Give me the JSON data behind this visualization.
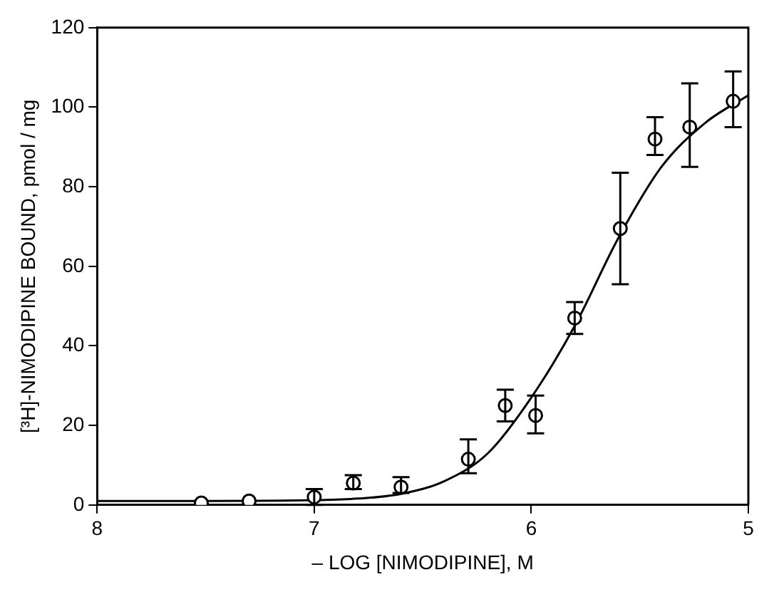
{
  "chart_data": {
    "type": "scatter",
    "xlabel": "– LOG [NIMODIPINE], M",
    "ylabel": "[³H]-NIMODIPINE BOUND, pmol / mg",
    "xlim": [
      8,
      5
    ],
    "xticks": [
      8,
      7,
      6,
      5
    ],
    "ylim": [
      0,
      120
    ],
    "yticks": [
      0,
      20,
      40,
      60,
      80,
      100,
      120
    ],
    "grid": false,
    "legend": false,
    "series": [
      {
        "type": "scatter",
        "color": "#000000",
        "marker": "circle",
        "x": [
          7.52,
          7.3,
          7.0,
          6.82,
          6.6,
          6.29,
          6.12,
          5.98,
          5.8,
          5.59,
          5.43,
          5.27,
          5.07
        ],
        "values": [
          0.5,
          1,
          2,
          5.5,
          4.5,
          11.5,
          25,
          22.5,
          47,
          69.5,
          92,
          95,
          101.5
        ],
        "errors": [
          null,
          null,
          [
            0,
            4
          ],
          [
            4,
            7.5
          ],
          [
            3,
            7
          ],
          [
            8,
            16.5
          ],
          [
            21,
            29
          ],
          [
            18,
            27.5
          ],
          [
            43,
            51
          ],
          [
            55.5,
            83.5
          ],
          [
            88,
            97.5
          ],
          [
            85,
            106
          ],
          [
            95,
            109
          ]
        ]
      },
      {
        "type": "line",
        "color": "#000000",
        "marker": "none",
        "line_style": "solid",
        "x": [
          8,
          7.5,
          7,
          6.8,
          6.6,
          6.4,
          6.2,
          6.0,
          5.8,
          5.6,
          5.4,
          5.2,
          5.0
        ],
        "values": [
          1,
          1,
          1.2,
          1.6,
          2.8,
          6,
          13,
          27,
          45,
          67,
          85,
          96,
          103
        ]
      }
    ]
  }
}
